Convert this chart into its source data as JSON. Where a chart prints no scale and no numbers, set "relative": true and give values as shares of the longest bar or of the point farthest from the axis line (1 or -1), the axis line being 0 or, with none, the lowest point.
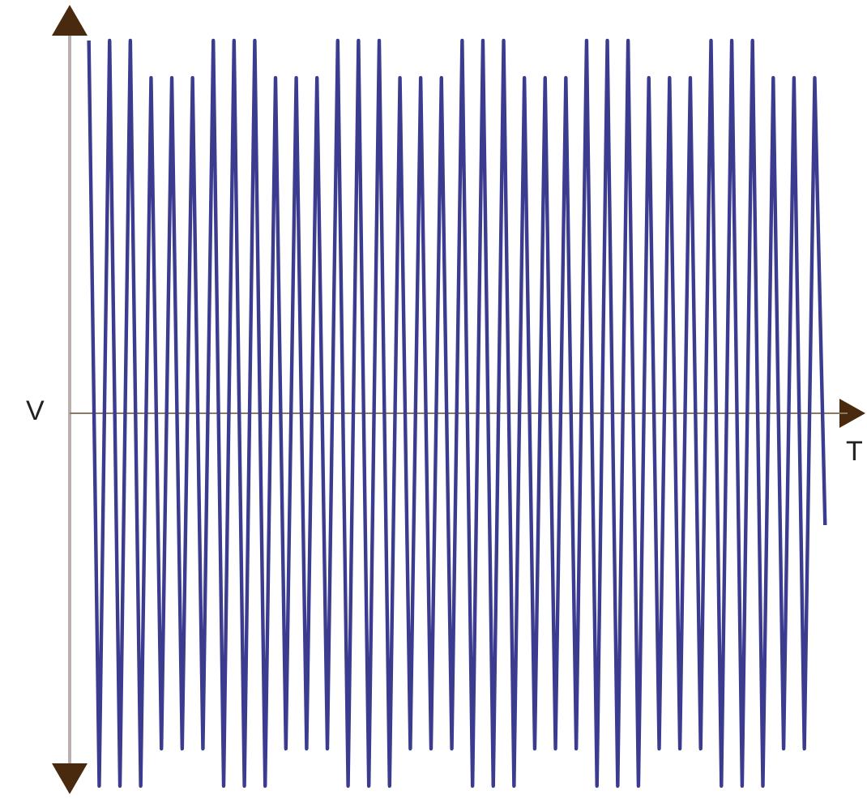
{
  "chart_data": {
    "type": "line",
    "relative": true,
    "xlabel": "T",
    "ylabel": "V",
    "ref_lines": [
      {
        "axis": "y",
        "value": 0,
        "color": "#8a7a60"
      }
    ],
    "categories": [
      null,
      null,
      null,
      null,
      null,
      null,
      null,
      null,
      null,
      null,
      null,
      null,
      null,
      null,
      null,
      null,
      null,
      null,
      null,
      null,
      null,
      null,
      null,
      null,
      null,
      null,
      null,
      null,
      null,
      null,
      null,
      null,
      null,
      null,
      null,
      null,
      null,
      null,
      null,
      null,
      null,
      null,
      null,
      null,
      null,
      null,
      null,
      null,
      null,
      null,
      null,
      null,
      null,
      null,
      null,
      null,
      null,
      null,
      null,
      null,
      null,
      null,
      null,
      null,
      null,
      null,
      null,
      null,
      null,
      null,
      null,
      null
    ],
    "series": [
      {
        "color": "#3b3b8f",
        "values": [
          1,
          -1,
          1,
          -1,
          1,
          -1,
          0.9,
          -0.9,
          0.9,
          -0.9,
          0.9,
          -0.9,
          1,
          -1,
          1,
          -1,
          1,
          -1,
          0.9,
          -0.9,
          0.9,
          -0.9,
          0.9,
          -0.9,
          1,
          -1,
          1,
          -1,
          1,
          -1,
          0.9,
          -0.9,
          0.9,
          -0.9,
          0.9,
          -0.9,
          1,
          -1,
          1,
          -1,
          1,
          -1,
          0.9,
          -0.9,
          0.9,
          -0.9,
          0.9,
          -0.9,
          1,
          -1,
          1,
          -1,
          1,
          -1,
          0.9,
          -0.9,
          0.9,
          -0.9,
          0.9,
          -0.9,
          1,
          -1,
          1,
          -1,
          1,
          -1,
          0.9,
          -0.9,
          0.9,
          -0.9,
          0.9,
          -0.3
        ]
      }
    ]
  }
}
